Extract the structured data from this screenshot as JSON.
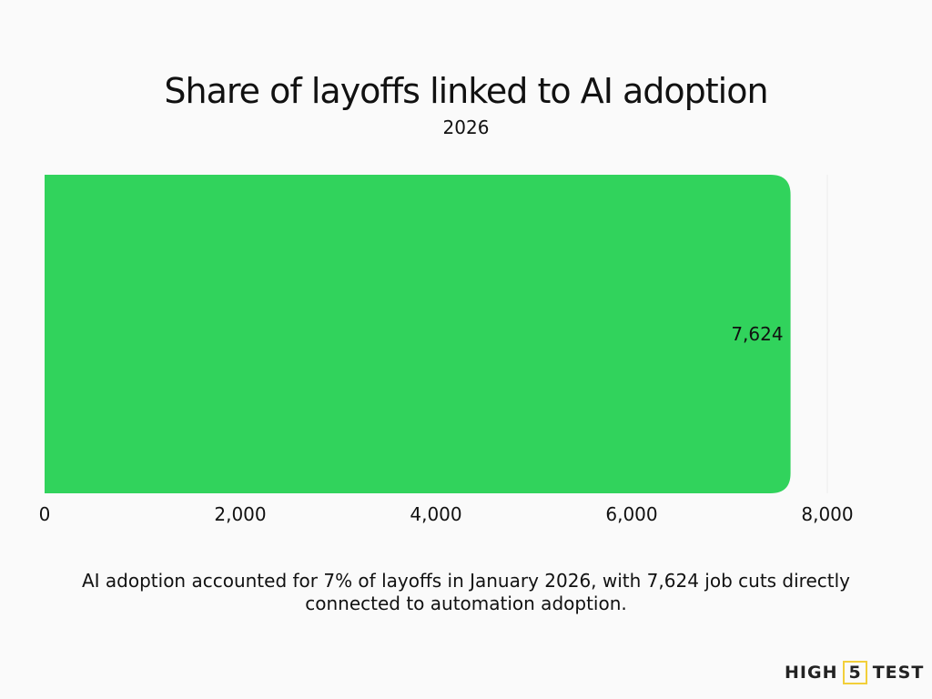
{
  "chart_data": {
    "type": "bar",
    "orientation": "horizontal",
    "title": "Share of layoffs linked to AI adoption",
    "subtitle": "2026",
    "categories": [
      ""
    ],
    "values": [
      7624
    ],
    "data_labels": [
      "7,624"
    ],
    "xlim": [
      0,
      8000
    ],
    "xticks": [
      0,
      2000,
      4000,
      6000,
      8000
    ],
    "xtick_labels": [
      "0",
      "2,000",
      "4,000",
      "6,000",
      "8,000"
    ],
    "xlabel": "",
    "ylabel": "",
    "grid": true,
    "bar_color": "#31d35c"
  },
  "caption": "AI adoption accounted for 7% of layoffs in January 2026, with 7,624 job cuts directly connected to automation adoption.",
  "logo": {
    "text_left": "HIGH",
    "text_mid": "5",
    "text_right": "TEST"
  }
}
